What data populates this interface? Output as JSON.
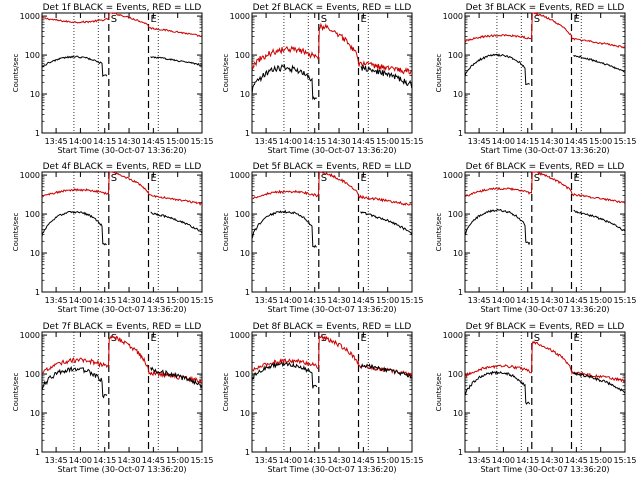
{
  "page": {
    "background": "#ffffff"
  },
  "colors": {
    "events": "#000000",
    "lld": "#cc0000"
  },
  "chart_data": {
    "type": "line",
    "panel_count": 9,
    "layout": "3x3",
    "xlabel": "Start Time (30-Oct-07 13:36:20)",
    "ylabel": "Counts/sec",
    "x_tick_labels": [
      "13:45",
      "14:00",
      "14:15",
      "14:30",
      "14:45",
      "15:00",
      "15:15"
    ],
    "x_tick_minutes": [
      825,
      840,
      855,
      870,
      885,
      900,
      915
    ],
    "xlim_minutes": [
      816.3,
      915
    ],
    "y_tick_labels": [
      "1",
      "10",
      "100",
      "1000"
    ],
    "y_scale": "log",
    "ylim": [
      1,
      1200
    ],
    "markers": [
      {
        "label": "S",
        "minute": 857.5,
        "style": "dashed"
      },
      {
        "label": "E",
        "minute": 882,
        "style": "dashed"
      }
    ],
    "dotted_lines_minutes": [
      836,
      851,
      888
    ],
    "panels": [
      {
        "title": "Det 1f BLACK = Events, RED = LLD",
        "black_base": 50,
        "black_hump": 40,
        "red_base": 900,
        "red_hump": 700,
        "red_after": 500,
        "noise": 0.05
      },
      {
        "title": "Det 2f BLACK = Events, RED = LLD",
        "black_base": 12,
        "black_hump": 35,
        "red_base": 50,
        "red_hump": 140,
        "red_after": 60,
        "noise": 0.18
      },
      {
        "title": "Det 3f BLACK = Events, RED = LLD",
        "black_base": 30,
        "black_hump": 70,
        "red_base": 230,
        "red_hump": 320,
        "red_after": 260,
        "noise": 0.06
      },
      {
        "title": "Det 4f BLACK = Events, RED = LLD",
        "black_base": 28,
        "black_hump": 85,
        "red_base": 280,
        "red_hump": 420,
        "red_after": 300,
        "noise": 0.06
      },
      {
        "title": "Det 5f BLACK = Events, RED = LLD",
        "black_base": 25,
        "black_hump": 90,
        "red_base": 250,
        "red_hump": 380,
        "red_after": 280,
        "noise": 0.07
      },
      {
        "title": "Det 6f BLACK = Events, RED = LLD",
        "black_base": 30,
        "black_hump": 95,
        "red_base": 280,
        "red_hump": 450,
        "red_after": 320,
        "noise": 0.06
      },
      {
        "title": "Det 7f BLACK = Events, RED = LLD",
        "black_base": 45,
        "black_hump": 90,
        "red_base": 100,
        "red_hump": 230,
        "red_after": 110,
        "noise": 0.14
      },
      {
        "title": "Det 8f BLACK = Events, RED = LLD",
        "black_base": 80,
        "black_hump": 100,
        "red_base": 120,
        "red_hump": 220,
        "red_after": 160,
        "noise": 0.12
      },
      {
        "title": "Det 9f BLACK = Events, RED = LLD",
        "black_base": 30,
        "black_hump": 80,
        "red_base": 90,
        "red_hump": 160,
        "red_after": 110,
        "noise": 0.08
      }
    ]
  }
}
